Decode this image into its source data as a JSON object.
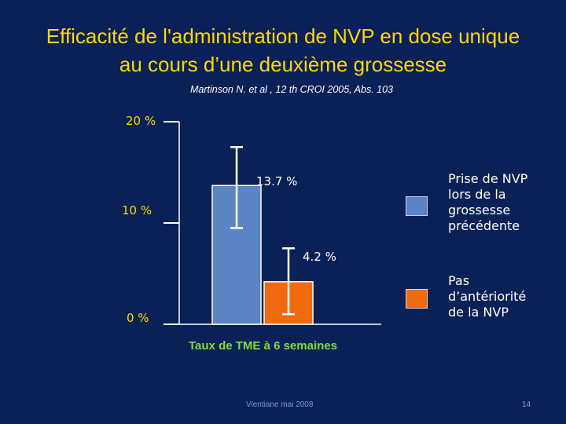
{
  "slide": {
    "title_line1": "Efficacité de l'administration de NVP en dose unique",
    "title_line2": "au cours d’une deuxième grossesse",
    "subtitle": "Martinson N. et al , 12 th CROI 2005, Abs. 103",
    "footer_left": "Vientiane mai 2008",
    "page_number": "14"
  },
  "colors": {
    "background": "#0a2158",
    "title": "#ffd700",
    "xlabel": "#7fdc3a"
  },
  "chart_data": {
    "type": "bar",
    "xlabel": "Taux de TME à 6 semaines",
    "ylabel": "",
    "ylim": [
      0,
      20
    ],
    "yticks": [
      0,
      10,
      20
    ],
    "ytick_labels": [
      "0 %",
      "10 %",
      "20 %"
    ],
    "grid": false,
    "legend_position": "right",
    "series": [
      {
        "name": "Prise de NVP lors de la grossesse précédente",
        "legend_lines": [
          "Prise de NVP",
          "lors de la",
          "grossesse",
          "précédente"
        ],
        "value": 13.7,
        "value_label": "13.7 %",
        "error_low": 9.5,
        "error_high": 17.5,
        "color": "#5b84c4"
      },
      {
        "name": "Pas d’antériorité de la NVP",
        "legend_lines": [
          "Pas",
          "d’antériorité",
          "de la NVP"
        ],
        "value": 4.2,
        "value_label": "4.2 %",
        "error_low": 1.0,
        "error_high": 7.5,
        "color": "#f26a10"
      }
    ]
  }
}
